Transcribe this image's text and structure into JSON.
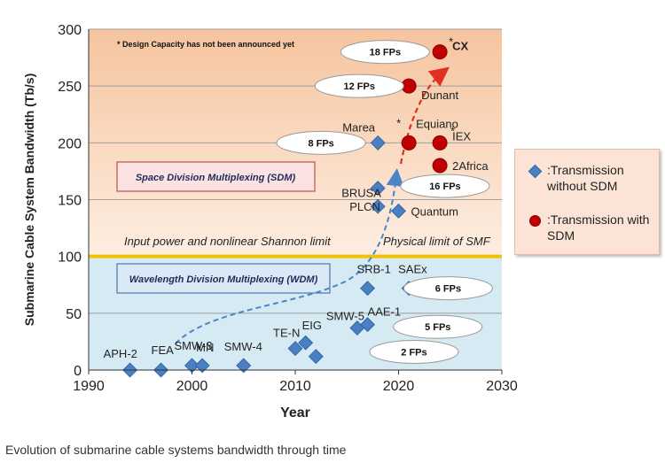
{
  "chart_data": {
    "type": "scatter",
    "title": "",
    "xlabel": "Year",
    "ylabel": "Submarine Cable System Bandwidth (Tb/s)",
    "xlim": [
      1990,
      2030
    ],
    "ylim": [
      0,
      300
    ],
    "xticks": [
      1990,
      2000,
      2010,
      2020,
      2030
    ],
    "yticks": [
      0,
      50,
      100,
      150,
      200,
      250,
      300
    ],
    "grid": true,
    "footnote": "* Design Capacity has not been announced yet",
    "series": [
      {
        "name": ":Transmission without SDM",
        "marker": "diamond",
        "color": "#4a7fc1",
        "points": [
          {
            "label": "APH-2",
            "x": 1994,
            "y": 0
          },
          {
            "label": "FEA",
            "x": 1997,
            "y": 0
          },
          {
            "label": "SMW-3",
            "x": 2000,
            "y": 4
          },
          {
            "label": "MN",
            "x": 2001,
            "y": 4
          },
          {
            "label": "SMW-4",
            "x": 2005,
            "y": 4
          },
          {
            "label": "TE-N",
            "x": 2010,
            "y": 19
          },
          {
            "label": "EIG",
            "x": 2011,
            "y": 24
          },
          {
            "label": "",
            "x": 2012,
            "y": 12
          },
          {
            "label": "SMW-5",
            "x": 2016,
            "y": 37
          },
          {
            "label": "AAE-1",
            "x": 2017,
            "y": 40
          },
          {
            "label": "SRB-1",
            "x": 2017,
            "y": 72
          },
          {
            "label": "SAEx",
            "x": 2021,
            "y": 72
          },
          {
            "label": "PLCN",
            "x": 2018,
            "y": 144
          },
          {
            "label": "BRUSA",
            "x": 2018,
            "y": 160
          },
          {
            "label": "Quantum",
            "x": 2020,
            "y": 140
          },
          {
            "label": "Marea",
            "x": 2018,
            "y": 200
          }
        ]
      },
      {
        "name": ":Transmission with SDM",
        "marker": "circle",
        "color": "#c00000",
        "points": [
          {
            "label": "Equiano",
            "x": 2021,
            "y": 200,
            "note": "*"
          },
          {
            "label": "IEX",
            "x": 2024,
            "y": 200,
            "note": "*"
          },
          {
            "label": "2Africa",
            "x": 2024,
            "y": 180,
            "note": ""
          },
          {
            "label": "Dunant",
            "x": 2021,
            "y": 250,
            "note": ""
          },
          {
            "label": "CX",
            "x": 2024,
            "y": 280,
            "note": "*"
          }
        ]
      }
    ],
    "regions": [
      {
        "label": "Space Division Multiplexing (SDM)",
        "from": 100,
        "to": 300
      },
      {
        "label": "Wavelength Division Multiplexing (WDM)",
        "from": 0,
        "to": 100
      }
    ],
    "threshold_line": {
      "y": 100,
      "label_left": "Input power and nonlinear Shannon limit",
      "label_right": "Physical limit of SMF"
    },
    "fp_annotations": [
      {
        "text": "2 FPs",
        "x": 2021.5,
        "y": 16
      },
      {
        "text": "5 FPs",
        "x": 2023.8,
        "y": 38
      },
      {
        "text": "6 FPs",
        "x": 2024.8,
        "y": 72
      },
      {
        "text": "8 FPs",
        "x": 2012.5,
        "y": 200
      },
      {
        "text": "12 FPs",
        "x": 2016.2,
        "y": 250
      },
      {
        "text": "16 FPs",
        "x": 2024.5,
        "y": 162
      },
      {
        "text": "18 FPs",
        "x": 2018.7,
        "y": 280
      }
    ]
  },
  "caption": "Evolution of submarine cable systems bandwidth through time"
}
